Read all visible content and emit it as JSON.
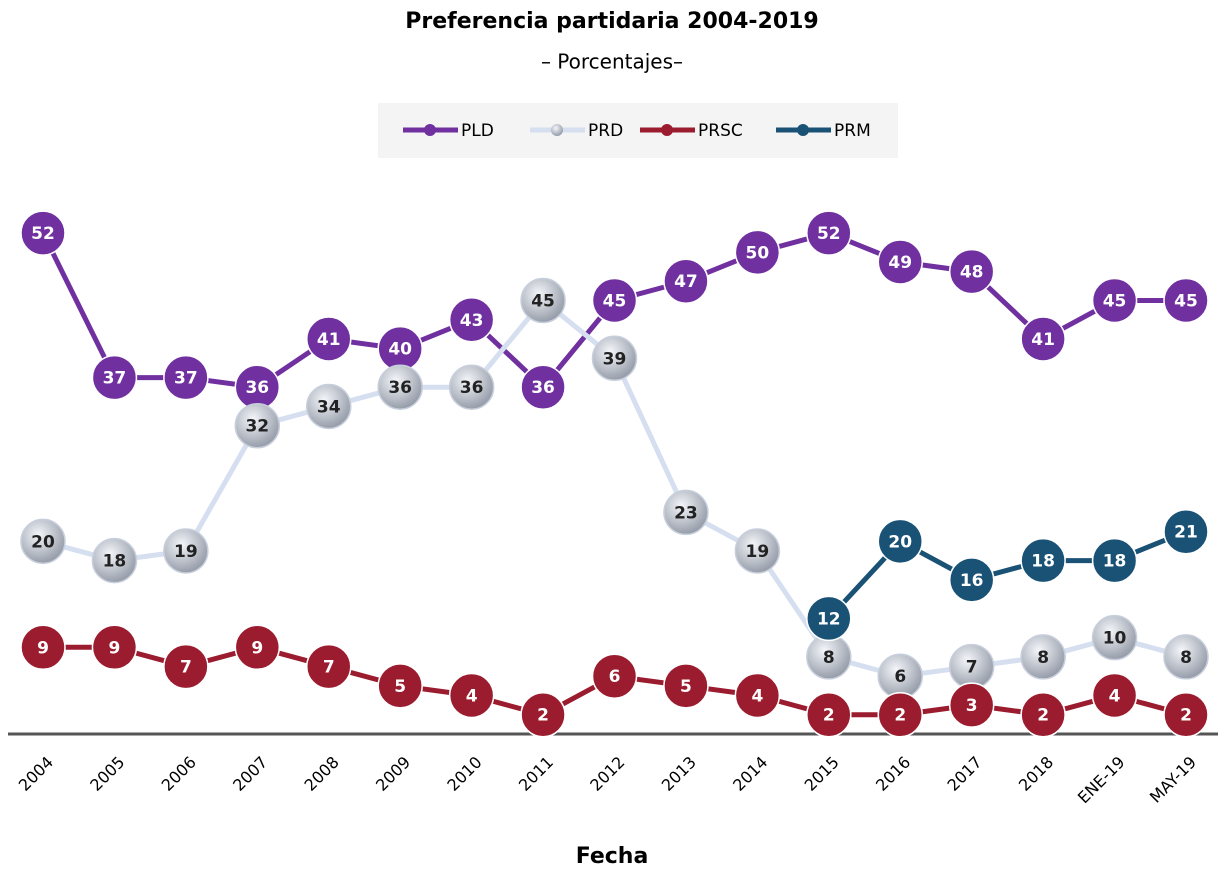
{
  "chart_data": {
    "type": "line",
    "title": "Preferencia partidaria 2004-2019",
    "subtitle": "– Porcentajes–",
    "x_label": "Fecha",
    "categories": [
      "2004",
      "2005",
      "2006",
      "2007",
      "2008",
      "2009",
      "2010",
      "2011",
      "2012",
      "2013",
      "2014",
      "2015",
      "2016",
      "2017",
      "2018",
      "ENE-19",
      "MAY-19"
    ],
    "ylim": [
      0,
      60
    ],
    "series": [
      {
        "name": "PLD",
        "color": "#7030a0",
        "values": [
          52,
          37,
          37,
          36,
          41,
          40,
          43,
          36,
          45,
          47,
          50,
          52,
          49,
          48,
          41,
          45,
          45
        ]
      },
      {
        "name": "PRD",
        "color": "#d6dff0",
        "values": [
          20,
          18,
          19,
          32,
          34,
          36,
          36,
          45,
          39,
          23,
          19,
          8,
          6,
          7,
          8,
          10,
          8
        ]
      },
      {
        "name": "PRSC",
        "color": "#9b1c2e",
        "values": [
          9,
          9,
          7,
          9,
          7,
          5,
          4,
          2,
          6,
          5,
          4,
          2,
          2,
          3,
          2,
          4,
          2
        ]
      },
      {
        "name": "PRM",
        "color": "#1a5276",
        "values": [
          null,
          null,
          null,
          null,
          null,
          null,
          null,
          null,
          null,
          null,
          null,
          12,
          20,
          16,
          18,
          18,
          21
        ]
      }
    ],
    "legend": "top"
  }
}
